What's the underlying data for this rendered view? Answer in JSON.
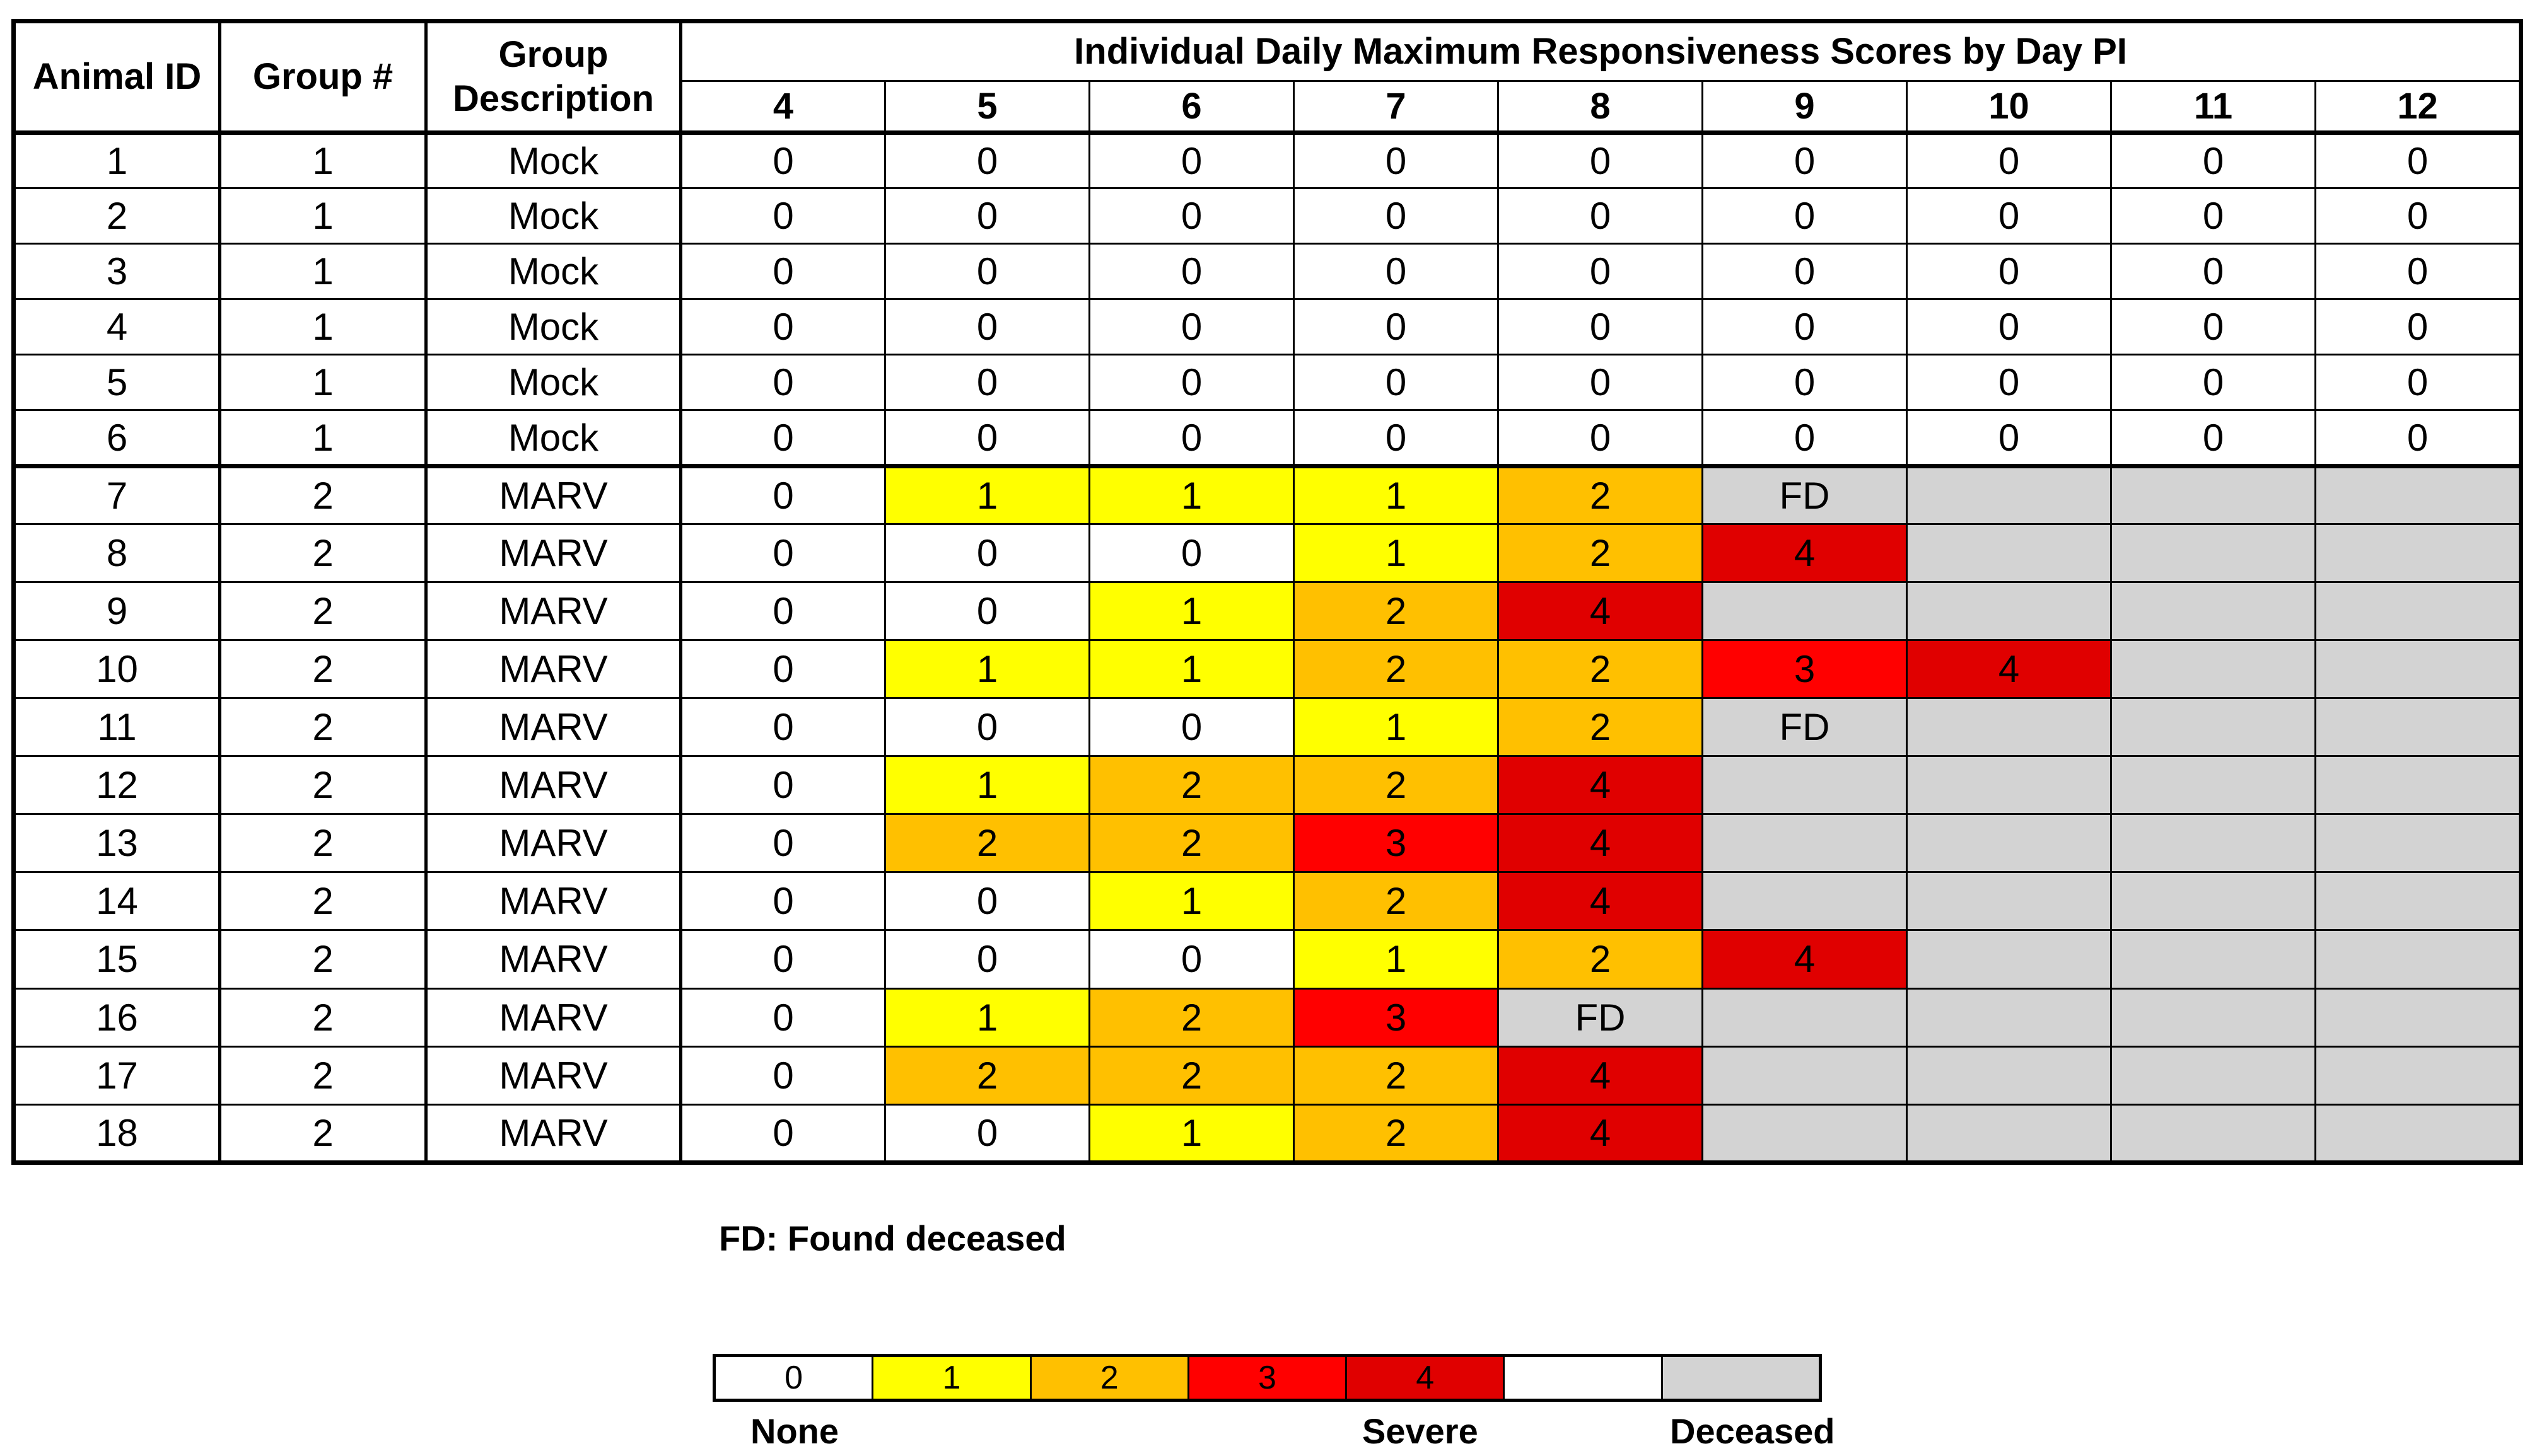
{
  "headers": {
    "animal_id": "Animal ID",
    "group_num": "Group #",
    "group_desc": "Group\nDescription",
    "span_title": "Individual Daily Maximum Responsiveness Scores by Day PI",
    "days": [
      "4",
      "5",
      "6",
      "7",
      "8",
      "9",
      "10",
      "11",
      "12"
    ]
  },
  "rows": [
    {
      "id": "1",
      "group": "1",
      "desc": "Mock",
      "scores": [
        "0",
        "0",
        "0",
        "0",
        "0",
        "0",
        "0",
        "0",
        "0"
      ]
    },
    {
      "id": "2",
      "group": "1",
      "desc": "Mock",
      "scores": [
        "0",
        "0",
        "0",
        "0",
        "0",
        "0",
        "0",
        "0",
        "0"
      ]
    },
    {
      "id": "3",
      "group": "1",
      "desc": "Mock",
      "scores": [
        "0",
        "0",
        "0",
        "0",
        "0",
        "0",
        "0",
        "0",
        "0"
      ]
    },
    {
      "id": "4",
      "group": "1",
      "desc": "Mock",
      "scores": [
        "0",
        "0",
        "0",
        "0",
        "0",
        "0",
        "0",
        "0",
        "0"
      ]
    },
    {
      "id": "5",
      "group": "1",
      "desc": "Mock",
      "scores": [
        "0",
        "0",
        "0",
        "0",
        "0",
        "0",
        "0",
        "0",
        "0"
      ]
    },
    {
      "id": "6",
      "group": "1",
      "desc": "Mock",
      "scores": [
        "0",
        "0",
        "0",
        "0",
        "0",
        "0",
        "0",
        "0",
        "0"
      ]
    },
    {
      "id": "7",
      "group": "2",
      "desc": "MARV",
      "scores": [
        "0",
        "1",
        "1",
        "1",
        "2",
        "FD",
        "",
        "",
        ""
      ]
    },
    {
      "id": "8",
      "group": "2",
      "desc": "MARV",
      "scores": [
        "0",
        "0",
        "0",
        "1",
        "2",
        "4",
        "",
        "",
        ""
      ]
    },
    {
      "id": "9",
      "group": "2",
      "desc": "MARV",
      "scores": [
        "0",
        "0",
        "1",
        "2",
        "4",
        "",
        "",
        "",
        ""
      ]
    },
    {
      "id": "10",
      "group": "2",
      "desc": "MARV",
      "scores": [
        "0",
        "1",
        "1",
        "2",
        "2",
        "3",
        "4",
        "",
        ""
      ]
    },
    {
      "id": "11",
      "group": "2",
      "desc": "MARV",
      "scores": [
        "0",
        "0",
        "0",
        "1",
        "2",
        "FD",
        "",
        "",
        ""
      ]
    },
    {
      "id": "12",
      "group": "2",
      "desc": "MARV",
      "scores": [
        "0",
        "1",
        "2",
        "2",
        "4",
        "",
        "",
        "",
        ""
      ]
    },
    {
      "id": "13",
      "group": "2",
      "desc": "MARV",
      "scores": [
        "0",
        "2",
        "2",
        "3",
        "4",
        "",
        "",
        "",
        ""
      ]
    },
    {
      "id": "14",
      "group": "2",
      "desc": "MARV",
      "scores": [
        "0",
        "0",
        "1",
        "2",
        "4",
        "",
        "",
        "",
        ""
      ]
    },
    {
      "id": "15",
      "group": "2",
      "desc": "MARV",
      "scores": [
        "0",
        "0",
        "0",
        "1",
        "2",
        "4",
        "",
        "",
        ""
      ]
    },
    {
      "id": "16",
      "group": "2",
      "desc": "MARV",
      "scores": [
        "0",
        "1",
        "2",
        "3",
        "FD",
        "",
        "",
        "",
        ""
      ]
    },
    {
      "id": "17",
      "group": "2",
      "desc": "MARV",
      "scores": [
        "0",
        "2",
        "2",
        "2",
        "4",
        "",
        "",
        "",
        ""
      ]
    },
    {
      "id": "18",
      "group": "2",
      "desc": "MARV",
      "scores": [
        "0",
        "0",
        "1",
        "2",
        "4",
        "",
        "",
        "",
        ""
      ]
    }
  ],
  "status_after_death": "deceased",
  "footnote": "FD: Found deceased",
  "legend": {
    "cells": [
      "0",
      "1",
      "2",
      "3",
      "4",
      "",
      ""
    ],
    "label_none": "None",
    "label_severe": "Severe",
    "label_deceased": "Deceased"
  },
  "colors": {
    "score_0": "#ffffff",
    "score_1": "#ffff00",
    "score_2": "#ffc000",
    "score_3": "#ff0000",
    "score_4": "#e00000",
    "deceased": "#d3d3d3"
  }
}
